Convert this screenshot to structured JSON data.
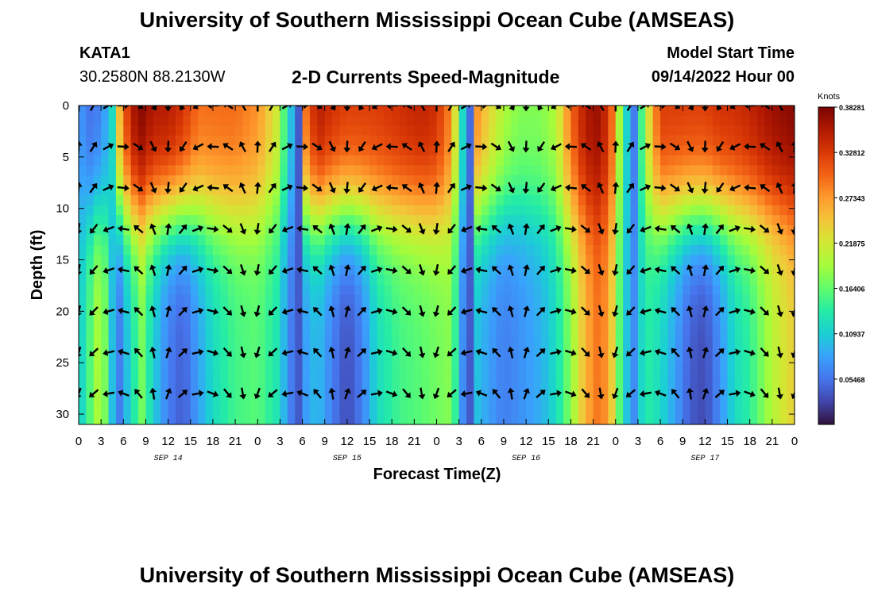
{
  "page": {
    "title_top": "University of Southern Mississippi Ocean Cube (AMSEAS)",
    "title_bottom": "University of Southern Mississippi Ocean Cube (AMSEAS)",
    "station_id": "KATA1",
    "station_coords": "30.2580N  88.2130W",
    "plot_title": "2-D Currents Speed-Magnitude",
    "model_start_label": "Model Start Time",
    "model_start_value": "09/14/2022 Hour 00"
  },
  "chart_data": {
    "type": "heatmap",
    "title": "2-D Currents Speed-Magnitude",
    "xlabel": "Forecast Time(Z)",
    "ylabel": "Depth (ft)",
    "x_range_hours": [
      0,
      96
    ],
    "ylim": [
      0,
      31
    ],
    "x_tick_hours": [
      0,
      3,
      6,
      9,
      12,
      15,
      18,
      21,
      24,
      27,
      30,
      33,
      36,
      39,
      42,
      45,
      48,
      51,
      54,
      57,
      60,
      63,
      66,
      69,
      72,
      75,
      78,
      81,
      84,
      87,
      90,
      93,
      96
    ],
    "x_tick_labels": [
      "0",
      "3",
      "6",
      "9",
      "12",
      "15",
      "18",
      "21",
      "0",
      "3",
      "6",
      "9",
      "12",
      "15",
      "18",
      "21",
      "0",
      "3",
      "6",
      "9",
      "12",
      "15",
      "18",
      "21",
      "0",
      "3",
      "6",
      "9",
      "12",
      "15",
      "18",
      "21",
      "0"
    ],
    "y_ticks": [
      0,
      5,
      10,
      15,
      20,
      25,
      30
    ],
    "y_tick_labels": [
      "0",
      "5",
      "10",
      "15",
      "20",
      "25",
      "30"
    ],
    "date_labels": [
      {
        "hour": 12,
        "label": "SEP 14"
      },
      {
        "hour": 36,
        "label": "SEP 15"
      },
      {
        "hour": 60,
        "label": "SEP 16"
      },
      {
        "hour": 84,
        "label": "SEP 17"
      }
    ],
    "colorbar": {
      "unit": "Knots",
      "min": 0.0,
      "max": 0.38281,
      "ticks": [
        0.05468,
        0.10937,
        0.16406,
        0.21875,
        0.27343,
        0.32812,
        0.38281
      ],
      "tick_labels": [
        "0.05468",
        "0.10937",
        "0.16406",
        "0.21875",
        "0.27343",
        "0.32812",
        "0.38281"
      ]
    },
    "colors": [
      "#30123b",
      "#4145ab",
      "#4675ed",
      "#39a2fc",
      "#1bcfd4",
      "#24eca6",
      "#61fc6c",
      "#a4fc3b",
      "#d1e834",
      "#f3c63a",
      "#fe9b2d",
      "#f36315",
      "#d93806",
      "#b11901",
      "#7a0403"
    ],
    "vector_depths": [
      0,
      4,
      8,
      12,
      16,
      20,
      24,
      28
    ],
    "vector_hour_step": 2,
    "speed_profiles": [
      {
        "hour": 0,
        "top": 0.09,
        "bottom": 0.1
      },
      {
        "hour": 1,
        "top": 0.05,
        "bottom": 0.14
      },
      {
        "hour": 3,
        "top": 0.06,
        "bottom": 0.21
      },
      {
        "hour": 4.5,
        "top": 0.12,
        "bottom": 0.1
      },
      {
        "hour": 5.5,
        "top": 0.26,
        "bottom": 0.06
      },
      {
        "hour": 7,
        "top": 0.36,
        "bottom": 0.12
      },
      {
        "hour": 8.5,
        "top": 0.38,
        "bottom": 0.17
      },
      {
        "hour": 10,
        "top": 0.36,
        "bottom": 0.11
      },
      {
        "hour": 12,
        "top": 0.36,
        "bottom": 0.06
      },
      {
        "hour": 14,
        "top": 0.34,
        "bottom": 0.04
      },
      {
        "hour": 16,
        "top": 0.3,
        "bottom": 0.08
      },
      {
        "hour": 18,
        "top": 0.3,
        "bottom": 0.12
      },
      {
        "hour": 21,
        "top": 0.3,
        "bottom": 0.15
      },
      {
        "hour": 24,
        "top": 0.28,
        "bottom": 0.16
      },
      {
        "hour": 26.5,
        "top": 0.22,
        "bottom": 0.13
      },
      {
        "hour": 28.5,
        "top": 0.1,
        "bottom": 0.06
      },
      {
        "hour": 29.5,
        "top": 0.04,
        "bottom": 0.04
      },
      {
        "hour": 30.5,
        "top": 0.3,
        "bottom": 0.08
      },
      {
        "hour": 32,
        "top": 0.36,
        "bottom": 0.1
      },
      {
        "hour": 34,
        "top": 0.34,
        "bottom": 0.06
      },
      {
        "hour": 36,
        "top": 0.33,
        "bottom": 0.03
      },
      {
        "hour": 38,
        "top": 0.33,
        "bottom": 0.06
      },
      {
        "hour": 40,
        "top": 0.33,
        "bottom": 0.12
      },
      {
        "hour": 43,
        "top": 0.34,
        "bottom": 0.15
      },
      {
        "hour": 46,
        "top": 0.35,
        "bottom": 0.16
      },
      {
        "hour": 48,
        "top": 0.34,
        "bottom": 0.17
      },
      {
        "hour": 50,
        "top": 0.28,
        "bottom": 0.18
      },
      {
        "hour": 51.5,
        "top": 0.12,
        "bottom": 0.07
      },
      {
        "hour": 52.5,
        "top": 0.05,
        "bottom": 0.04
      },
      {
        "hour": 53.5,
        "top": 0.28,
        "bottom": 0.1
      },
      {
        "hour": 55,
        "top": 0.24,
        "bottom": 0.08
      },
      {
        "hour": 57,
        "top": 0.2,
        "bottom": 0.06
      },
      {
        "hour": 59,
        "top": 0.18,
        "bottom": 0.07
      },
      {
        "hour": 62,
        "top": 0.18,
        "bottom": 0.09
      },
      {
        "hour": 64,
        "top": 0.2,
        "bottom": 0.12
      },
      {
        "hour": 66,
        "top": 0.3,
        "bottom": 0.18
      },
      {
        "hour": 68,
        "top": 0.36,
        "bottom": 0.26
      },
      {
        "hour": 70,
        "top": 0.37,
        "bottom": 0.3
      },
      {
        "hour": 71.5,
        "top": 0.3,
        "bottom": 0.24
      },
      {
        "hour": 73,
        "top": 0.14,
        "bottom": 0.12
      },
      {
        "hour": 74.5,
        "top": 0.06,
        "bottom": 0.07
      },
      {
        "hour": 76,
        "top": 0.2,
        "bottom": 0.14
      },
      {
        "hour": 78,
        "top": 0.33,
        "bottom": 0.12
      },
      {
        "hour": 80,
        "top": 0.33,
        "bottom": 0.08
      },
      {
        "hour": 82,
        "top": 0.33,
        "bottom": 0.04
      },
      {
        "hour": 84,
        "top": 0.33,
        "bottom": 0.03
      },
      {
        "hour": 86,
        "top": 0.34,
        "bottom": 0.07
      },
      {
        "hour": 88,
        "top": 0.34,
        "bottom": 0.12
      },
      {
        "hour": 90,
        "top": 0.35,
        "bottom": 0.14
      },
      {
        "hour": 93,
        "top": 0.37,
        "bottom": 0.2
      },
      {
        "hour": 96,
        "top": 0.38,
        "bottom": 0.24
      }
    ]
  }
}
